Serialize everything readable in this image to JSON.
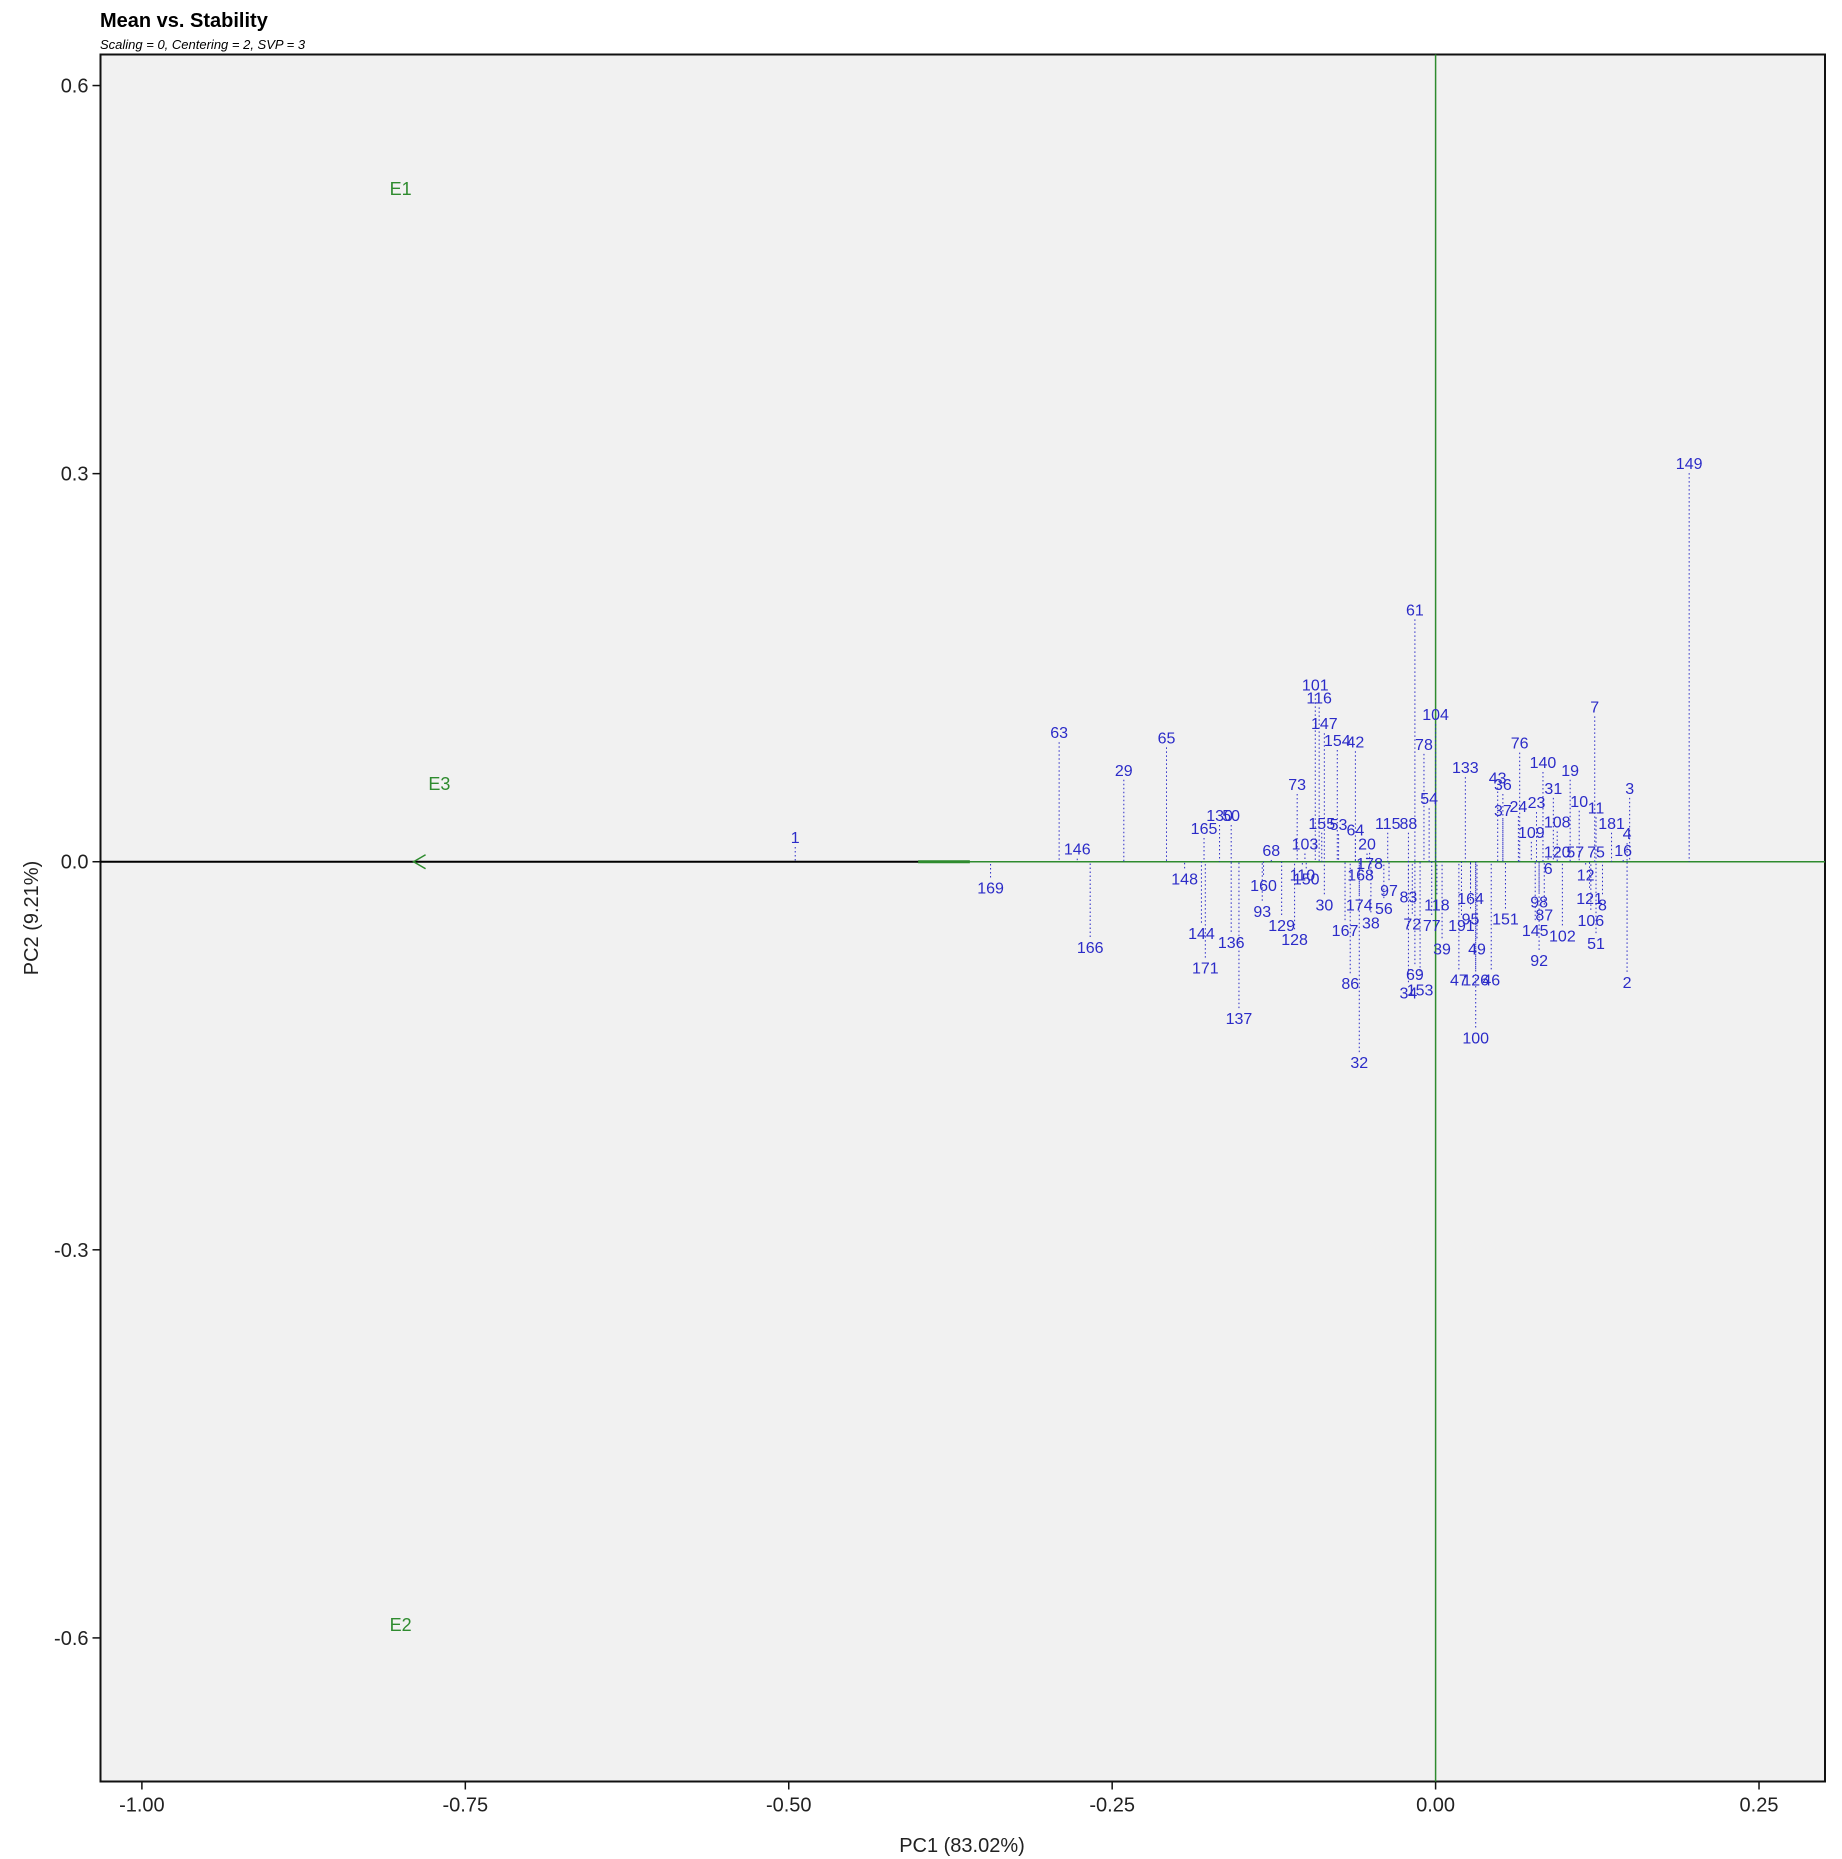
{
  "chart_data": {
    "type": "biplot",
    "title": "Mean vs. Stability",
    "subtitle": "Scaling = 0, Centering = 2, SVP = 3",
    "x_label": "PC1 (83.02%)",
    "y_label": "PC2 (9.21%)",
    "xlim": [
      -1.032,
      0.301
    ],
    "ylim": [
      -0.711,
      0.624
    ],
    "xticks": [
      {
        "value": -1,
        "label": "-1.00"
      },
      {
        "value": -0.75,
        "label": "-0.75"
      },
      {
        "value": -0.5,
        "label": "-0.50"
      },
      {
        "value": -0.25,
        "label": "-0.25"
      },
      {
        "value": 0,
        "label": "0.00"
      },
      {
        "value": 0.25,
        "label": "0.25"
      }
    ],
    "yticks": [
      0.6,
      0.3,
      {
        "value": 0,
        "label": "0.0"
      },
      -0.3,
      -0.6
    ],
    "genotype_color": "#2b2bc8",
    "environment_color": "#2e8b2e",
    "environments": [
      {
        "label": "E1",
        "x": -0.8,
        "y": 0.52
      },
      {
        "label": "E3",
        "x": -0.77,
        "y": 0.06
      },
      {
        "label": "E2",
        "x": -0.8,
        "y": -0.59
      }
    ],
    "points": [
      {
        "label": "149",
        "x": 0.196,
        "y": 0.305
      },
      {
        "label": "61",
        "x": -0.016,
        "y": 0.192
      },
      {
        "label": "101",
        "x": -0.093,
        "y": 0.134
      },
      {
        "label": "116",
        "x": -0.09,
        "y": 0.124
      },
      {
        "label": "7",
        "x": 0.123,
        "y": 0.117
      },
      {
        "label": "104",
        "x": 0.0,
        "y": 0.111
      },
      {
        "label": "147",
        "x": -0.086,
        "y": 0.104
      },
      {
        "label": "63",
        "x": -0.291,
        "y": 0.097
      },
      {
        "label": "65",
        "x": -0.208,
        "y": 0.093
      },
      {
        "label": "154",
        "x": -0.076,
        "y": 0.091
      },
      {
        "label": "42",
        "x": -0.062,
        "y": 0.09
      },
      {
        "label": "78",
        "x": -0.009,
        "y": 0.088
      },
      {
        "label": "76",
        "x": 0.065,
        "y": 0.089
      },
      {
        "label": "140",
        "x": 0.083,
        "y": 0.074
      },
      {
        "label": "29",
        "x": -0.241,
        "y": 0.068
      },
      {
        "label": "133",
        "x": 0.023,
        "y": 0.07
      },
      {
        "label": "19",
        "x": 0.104,
        "y": 0.068
      },
      {
        "label": "43",
        "x": 0.048,
        "y": 0.062
      },
      {
        "label": "3",
        "x": 0.15,
        "y": 0.054
      },
      {
        "label": "73",
        "x": -0.107,
        "y": 0.057
      },
      {
        "label": "31",
        "x": 0.091,
        "y": 0.054
      },
      {
        "label": "36",
        "x": 0.052,
        "y": 0.057
      },
      {
        "label": "10",
        "x": 0.111,
        "y": 0.044
      },
      {
        "label": "11",
        "x": 0.124,
        "y": 0.039
      },
      {
        "label": "23",
        "x": 0.078,
        "y": 0.043
      },
      {
        "label": "24",
        "x": 0.064,
        "y": 0.04
      },
      {
        "label": "37",
        "x": 0.052,
        "y": 0.037
      },
      {
        "label": "54",
        "x": -0.005,
        "y": 0.046
      },
      {
        "label": "1",
        "x": -0.495,
        "y": 0.016
      },
      {
        "label": "181",
        "x": 0.136,
        "y": 0.027
      },
      {
        "label": "108",
        "x": 0.094,
        "y": 0.028
      },
      {
        "label": "165",
        "x": -0.179,
        "y": 0.023
      },
      {
        "label": "130",
        "x": -0.167,
        "y": 0.033
      },
      {
        "label": "50",
        "x": -0.158,
        "y": 0.033
      },
      {
        "label": "155",
        "x": -0.088,
        "y": 0.027
      },
      {
        "label": "53",
        "x": -0.075,
        "y": 0.026
      },
      {
        "label": "64",
        "x": -0.062,
        "y": 0.022
      },
      {
        "label": "115",
        "x": -0.037,
        "y": 0.027
      },
      {
        "label": "88",
        "x": -0.021,
        "y": 0.027
      },
      {
        "label": "109",
        "x": 0.074,
        "y": 0.02
      },
      {
        "label": "4",
        "x": 0.148,
        "y": 0.019
      },
      {
        "label": "146",
        "x": -0.277,
        "y": 0.007
      },
      {
        "label": "16",
        "x": 0.145,
        "y": 0.006
      },
      {
        "label": "20",
        "x": -0.053,
        "y": 0.011
      },
      {
        "label": "68",
        "x": -0.127,
        "y": 0.006
      },
      {
        "label": "103",
        "x": -0.101,
        "y": 0.011
      },
      {
        "label": "57",
        "x": 0.108,
        "y": 0.005
      },
      {
        "label": "75",
        "x": 0.124,
        "y": 0.005
      },
      {
        "label": "120",
        "x": 0.094,
        "y": 0.005
      },
      {
        "label": "178",
        "x": -0.051,
        "y": -0.004
      },
      {
        "label": "148",
        "x": -0.194,
        "y": -0.016
      },
      {
        "label": "169",
        "x": -0.344,
        "y": -0.023
      },
      {
        "label": "160",
        "x": -0.133,
        "y": -0.021
      },
      {
        "label": "110",
        "x": -0.103,
        "y": -0.013
      },
      {
        "label": "150",
        "x": -0.1,
        "y": -0.016
      },
      {
        "label": "168",
        "x": -0.058,
        "y": -0.013
      },
      {
        "label": "12",
        "x": 0.116,
        "y": -0.013
      },
      {
        "label": "97",
        "x": -0.036,
        "y": -0.025
      },
      {
        "label": "6",
        "x": 0.087,
        "y": -0.008
      },
      {
        "label": "83",
        "x": -0.021,
        "y": -0.03
      },
      {
        "label": "30",
        "x": -0.086,
        "y": -0.036
      },
      {
        "label": "174",
        "x": -0.059,
        "y": -0.036
      },
      {
        "label": "56",
        "x": -0.04,
        "y": -0.039
      },
      {
        "label": "93",
        "x": -0.134,
        "y": -0.041
      },
      {
        "label": "118",
        "x": 0.001,
        "y": -0.036
      },
      {
        "label": "164",
        "x": 0.027,
        "y": -0.031
      },
      {
        "label": "98",
        "x": 0.08,
        "y": -0.034
      },
      {
        "label": "87",
        "x": 0.084,
        "y": -0.044
      },
      {
        "label": "8",
        "x": 0.129,
        "y": -0.036
      },
      {
        "label": "121",
        "x": 0.119,
        "y": -0.031
      },
      {
        "label": "129",
        "x": -0.119,
        "y": -0.052
      },
      {
        "label": "72",
        "x": -0.018,
        "y": -0.051
      },
      {
        "label": "77",
        "x": -0.003,
        "y": -0.052
      },
      {
        "label": "38",
        "x": -0.05,
        "y": -0.05
      },
      {
        "label": "167",
        "x": -0.07,
        "y": -0.056
      },
      {
        "label": "144",
        "x": -0.181,
        "y": -0.058
      },
      {
        "label": "128",
        "x": -0.109,
        "y": -0.063
      },
      {
        "label": "136",
        "x": -0.158,
        "y": -0.065
      },
      {
        "label": "191",
        "x": 0.02,
        "y": -0.052
      },
      {
        "label": "151",
        "x": 0.054,
        "y": -0.047
      },
      {
        "label": "95",
        "x": 0.027,
        "y": -0.047
      },
      {
        "label": "145",
        "x": 0.077,
        "y": -0.056
      },
      {
        "label": "102",
        "x": 0.098,
        "y": -0.06
      },
      {
        "label": "106",
        "x": 0.12,
        "y": -0.048
      },
      {
        "label": "166",
        "x": -0.267,
        "y": -0.069
      },
      {
        "label": "51",
        "x": 0.124,
        "y": -0.066
      },
      {
        "label": "39",
        "x": 0.005,
        "y": -0.07
      },
      {
        "label": "49",
        "x": 0.032,
        "y": -0.07
      },
      {
        "label": "92",
        "x": 0.08,
        "y": -0.079
      },
      {
        "label": "171",
        "x": -0.178,
        "y": -0.085
      },
      {
        "label": "69",
        "x": -0.016,
        "y": -0.09
      },
      {
        "label": "47",
        "x": 0.018,
        "y": -0.094
      },
      {
        "label": "126",
        "x": 0.031,
        "y": -0.094
      },
      {
        "label": "46",
        "x": 0.043,
        "y": -0.094
      },
      {
        "label": "2",
        "x": 0.148,
        "y": -0.096
      },
      {
        "label": "86",
        "x": -0.066,
        "y": -0.097
      },
      {
        "label": "34",
        "x": -0.021,
        "y": -0.104
      },
      {
        "label": "153",
        "x": -0.012,
        "y": -0.102
      },
      {
        "label": "137",
        "x": -0.152,
        "y": -0.124
      },
      {
        "label": "100",
        "x": 0.031,
        "y": -0.139
      },
      {
        "label": "32",
        "x": -0.059,
        "y": -0.158
      }
    ]
  }
}
